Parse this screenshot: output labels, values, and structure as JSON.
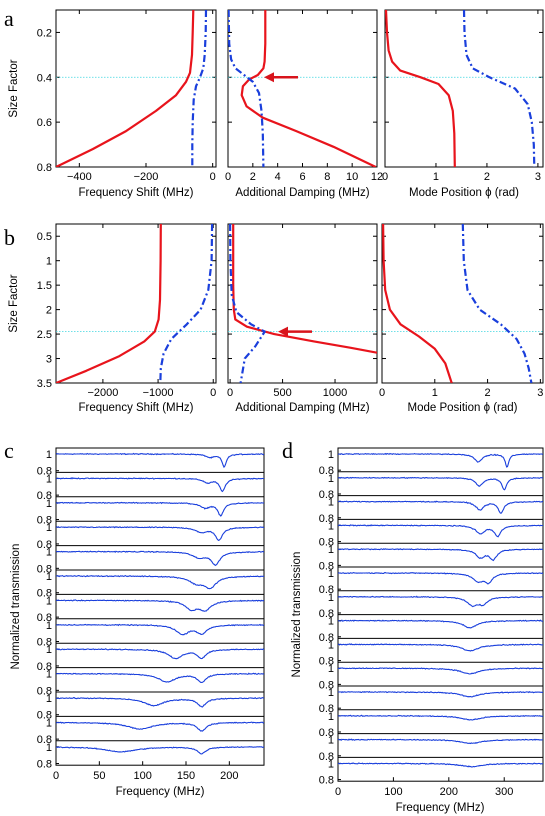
{
  "chart_data": [
    {
      "panel": "a",
      "type": "line",
      "ylabel": "Size Factor",
      "ylim": [
        0.1,
        0.8
      ],
      "yticks": [
        0.2,
        0.4,
        0.6,
        0.8
      ],
      "reference_line_y": 0.4,
      "subplots": [
        {
          "xlabel": "Frequency Shift (MHz)",
          "xlim": [
            -470,
            10
          ],
          "xticks": [
            -400,
            -200,
            0
          ],
          "series": [
            {
              "style": "solid",
              "color": "#e8141c",
              "points": [
                [
                  -58,
                  0.1
                ],
                [
                  -60,
                  0.2
                ],
                [
                  -62,
                  0.3
                ],
                [
                  -68,
                  0.38
                ],
                [
                  -80,
                  0.42
                ],
                [
                  -110,
                  0.48
                ],
                [
                  -170,
                  0.55
                ],
                [
                  -260,
                  0.64
                ],
                [
                  -360,
                  0.72
                ],
                [
                  -470,
                  0.8
                ]
              ]
            },
            {
              "style": "dashdot",
              "color": "#1a3fdc",
              "points": [
                [
                  -20,
                  0.1
                ],
                [
                  -21,
                  0.2
                ],
                [
                  -24,
                  0.3
                ],
                [
                  -28,
                  0.36
                ],
                [
                  -38,
                  0.4
                ],
                [
                  -50,
                  0.44
                ],
                [
                  -57,
                  0.5
                ],
                [
                  -60,
                  0.6
                ],
                [
                  -61,
                  0.7
                ],
                [
                  -61,
                  0.8
                ]
              ]
            }
          ]
        },
        {
          "xlabel": "Additional Damping (MHz)",
          "xlim": [
            0,
            12
          ],
          "xticks": [
            0,
            2,
            4,
            6,
            8,
            10,
            12
          ],
          "series": [
            {
              "style": "solid",
              "color": "#e8141c",
              "points": [
                [
                  3.0,
                  0.1
                ],
                [
                  3.0,
                  0.25
                ],
                [
                  2.95,
                  0.33
                ],
                [
                  2.85,
                  0.36
                ],
                [
                  2.4,
                  0.39
                ],
                [
                  1.7,
                  0.41
                ],
                [
                  1.2,
                  0.44
                ],
                [
                  1.1,
                  0.48
                ],
                [
                  1.5,
                  0.53
                ],
                [
                  2.8,
                  0.58
                ],
                [
                  5.5,
                  0.64
                ],
                [
                  8.5,
                  0.71
                ],
                [
                  11.9,
                  0.8
                ]
              ]
            },
            {
              "style": "dashdot",
              "color": "#1a3fdc",
              "points": [
                [
                  0.05,
                  0.1
                ],
                [
                  0.1,
                  0.25
                ],
                [
                  0.25,
                  0.32
                ],
                [
                  0.6,
                  0.36
                ],
                [
                  1.3,
                  0.39
                ],
                [
                  2.0,
                  0.42
                ],
                [
                  2.5,
                  0.47
                ],
                [
                  2.7,
                  0.55
                ],
                [
                  2.8,
                  0.65
                ],
                [
                  2.85,
                  0.8
                ]
              ]
            }
          ]
        },
        {
          "xlabel": "Mode Position ϕ (rad)",
          "xlim": [
            0,
            3.1
          ],
          "xticks": [
            0,
            1,
            2,
            3
          ],
          "series": [
            {
              "style": "solid",
              "color": "#e8141c",
              "points": [
                [
                  0.02,
                  0.1
                ],
                [
                  0.04,
                  0.2
                ],
                [
                  0.07,
                  0.28
                ],
                [
                  0.14,
                  0.33
                ],
                [
                  0.3,
                  0.37
                ],
                [
                  0.7,
                  0.4
                ],
                [
                  1.05,
                  0.43
                ],
                [
                  1.25,
                  0.48
                ],
                [
                  1.33,
                  0.55
                ],
                [
                  1.36,
                  0.65
                ],
                [
                  1.37,
                  0.8
                ]
              ]
            },
            {
              "style": "dashdot",
              "color": "#1a3fdc",
              "points": [
                [
                  1.55,
                  0.1
                ],
                [
                  1.56,
                  0.2
                ],
                [
                  1.6,
                  0.3
                ],
                [
                  1.72,
                  0.36
                ],
                [
                  2.05,
                  0.4
                ],
                [
                  2.55,
                  0.45
                ],
                [
                  2.8,
                  0.52
                ],
                [
                  2.88,
                  0.6
                ],
                [
                  2.92,
                  0.7
                ],
                [
                  2.93,
                  0.8
                ]
              ]
            }
          ]
        }
      ]
    },
    {
      "panel": "b",
      "type": "line",
      "ylabel": "Size Factor",
      "ylim": [
        0.25,
        3.5
      ],
      "yticks": [
        0.5,
        1,
        1.5,
        2,
        2.5,
        3,
        3.5
      ],
      "reference_line_y": 2.45,
      "subplots": [
        {
          "xlabel": "Frequency Shift (MHz)",
          "xlim": [
            -2850,
            50
          ],
          "xticks": [
            -2000,
            -1000,
            0
          ],
          "series": [
            {
              "style": "solid",
              "color": "#e8141c",
              "points": [
                [
                  -950,
                  0.25
                ],
                [
                  -955,
                  1.0
                ],
                [
                  -965,
                  1.8
                ],
                [
                  -990,
                  2.2
                ],
                [
                  -1060,
                  2.45
                ],
                [
                  -1250,
                  2.65
                ],
                [
                  -1700,
                  2.95
                ],
                [
                  -2300,
                  3.25
                ],
                [
                  -2850,
                  3.5
                ]
              ]
            },
            {
              "style": "dashdot",
              "color": "#1a3fdc",
              "points": [
                [
                  -20,
                  0.25
                ],
                [
                  -30,
                  1.0
                ],
                [
                  -90,
                  1.6
                ],
                [
                  -230,
                  2.0
                ],
                [
                  -480,
                  2.3
                ],
                [
                  -760,
                  2.6
                ],
                [
                  -900,
                  2.9
                ],
                [
                  -950,
                  3.2
                ],
                [
                  -960,
                  3.5
                ]
              ]
            }
          ]
        },
        {
          "xlabel": "Additional Damping (MHz)",
          "xlim": [
            -20,
            1400
          ],
          "xticks": [
            0,
            500,
            1000
          ],
          "series": [
            {
              "style": "solid",
              "color": "#e8141c",
              "points": [
                [
                  30,
                  0.25
                ],
                [
                  30,
                  1.5
                ],
                [
                  35,
                  2.0
                ],
                [
                  50,
                  2.2
                ],
                [
                  160,
                  2.35
                ],
                [
                  420,
                  2.5
                ],
                [
                  800,
                  2.65
                ],
                [
                  1150,
                  2.78
                ],
                [
                  1400,
                  2.88
                ]
              ]
            },
            {
              "style": "dashdot",
              "color": "#1a3fdc",
              "points": [
                [
                  0,
                  0.25
                ],
                [
                  3,
                  1.0
                ],
                [
                  15,
                  1.7
                ],
                [
                  60,
                  2.05
                ],
                [
                  200,
                  2.3
                ],
                [
                  330,
                  2.45
                ],
                [
                  240,
                  2.75
                ],
                [
                  140,
                  3.0
                ],
                [
                  100,
                  3.5
                ]
              ]
            }
          ]
        },
        {
          "xlabel": "Mode Position ϕ (rad)",
          "xlim": [
            0,
            3.05
          ],
          "xticks": [
            0,
            1,
            2,
            3
          ],
          "series": [
            {
              "style": "solid",
              "color": "#e8141c",
              "points": [
                [
                  0.02,
                  0.25
                ],
                [
                  0.03,
                  1.0
                ],
                [
                  0.06,
                  1.6
                ],
                [
                  0.15,
                  2.0
                ],
                [
                  0.35,
                  2.3
                ],
                [
                  0.7,
                  2.55
                ],
                [
                  1.0,
                  2.8
                ],
                [
                  1.2,
                  3.1
                ],
                [
                  1.32,
                  3.5
                ]
              ]
            },
            {
              "style": "dashdot",
              "color": "#1a3fdc",
              "points": [
                [
                  1.53,
                  0.25
                ],
                [
                  1.55,
                  1.0
                ],
                [
                  1.62,
                  1.6
                ],
                [
                  1.85,
                  2.0
                ],
                [
                  2.25,
                  2.3
                ],
                [
                  2.55,
                  2.6
                ],
                [
                  2.7,
                  2.9
                ],
                [
                  2.78,
                  3.2
                ],
                [
                  2.83,
                  3.5
                ]
              ]
            }
          ]
        }
      ]
    },
    {
      "panel": "c",
      "type": "line",
      "xlabel": "Frequency (MHz)",
      "ylabel": "Normalized transmission",
      "xlim": [
        0,
        240
      ],
      "xticks": [
        0,
        50,
        100,
        150,
        200
      ],
      "strip_yticks": [
        "1",
        "0.8"
      ],
      "traces": [
        {
          "dips": [
            [
              178,
              6,
              0.04
            ],
            [
              194,
              3,
              0.15
            ]
          ]
        },
        {
          "dips": [
            [
              175,
              6,
              0.05
            ],
            [
              192,
              4,
              0.15
            ]
          ]
        },
        {
          "dips": [
            [
              172,
              7,
              0.06
            ],
            [
              190,
              4,
              0.15
            ]
          ]
        },
        {
          "dips": [
            [
              168,
              8,
              0.06
            ],
            [
              188,
              5,
              0.15
            ]
          ]
        },
        {
          "dips": [
            [
              165,
              9,
              0.07
            ],
            [
              184,
              6,
              0.15
            ]
          ]
        },
        {
          "dips": [
            [
              162,
              10,
              0.08
            ],
            [
              178,
              8,
              0.13
            ]
          ]
        },
        {
          "dips": [
            [
              156,
              8,
              0.1
            ],
            [
              172,
              8,
              0.11
            ]
          ]
        },
        {
          "dips": [
            [
              146,
              9,
              0.11
            ],
            [
              168,
              7,
              0.1
            ]
          ]
        },
        {
          "dips": [
            [
              138,
              10,
              0.11
            ],
            [
              168,
              6,
              0.1
            ]
          ]
        },
        {
          "dips": [
            [
              128,
              12,
              0.1
            ],
            [
              168,
              6,
              0.1
            ]
          ]
        },
        {
          "dips": [
            [
              113,
              14,
              0.09
            ],
            [
              168,
              6,
              0.1
            ]
          ]
        },
        {
          "dips": [
            [
              97,
              17,
              0.08
            ],
            [
              168,
              6,
              0.1
            ]
          ]
        },
        {
          "dips": [
            [
              75,
              22,
              0.06
            ],
            [
              168,
              6,
              0.08
            ]
          ]
        }
      ]
    },
    {
      "panel": "d",
      "type": "line",
      "xlabel": "Frequency (MHz)",
      "ylabel": "Normalized transmission",
      "xlim": [
        0,
        370
      ],
      "xticks": [
        0,
        100,
        200,
        300
      ],
      "strip_yticks": [
        "1",
        "0.8"
      ],
      "traces": [
        {
          "dips": [
            [
              253,
              8,
              0.1
            ],
            [
              305,
              4,
              0.16
            ]
          ]
        },
        {
          "dips": [
            [
              255,
              8,
              0.1
            ],
            [
              300,
              5,
              0.15
            ]
          ]
        },
        {
          "dips": [
            [
              256,
              9,
              0.1
            ],
            [
              294,
              6,
              0.14
            ]
          ]
        },
        {
          "dips": [
            [
              257,
              10,
              0.1
            ],
            [
              288,
              7,
              0.13
            ]
          ]
        },
        {
          "dips": [
            [
              257,
              10,
              0.1
            ],
            [
              280,
              8,
              0.12
            ]
          ]
        },
        {
          "dips": [
            [
              253,
              12,
              0.1
            ],
            [
              272,
              8,
              0.1
            ]
          ]
        },
        {
          "dips": [
            [
              243,
              12,
              0.1
            ],
            [
              262,
              9,
              0.08
            ]
          ]
        },
        {
          "dips": [
            [
              238,
              15,
              0.09
            ]
          ]
        },
        {
          "dips": [
            [
              238,
              18,
              0.08
            ]
          ]
        },
        {
          "dips": [
            [
              238,
              20,
              0.07
            ]
          ]
        },
        {
          "dips": [
            [
              238,
              20,
              0.06
            ]
          ]
        },
        {
          "dips": [
            [
              240,
              22,
              0.05
            ]
          ]
        },
        {
          "dips": [
            [
              240,
              24,
              0.045
            ]
          ]
        },
        {
          "dips": [
            [
              240,
              25,
              0.04
            ]
          ]
        }
      ]
    }
  ]
}
